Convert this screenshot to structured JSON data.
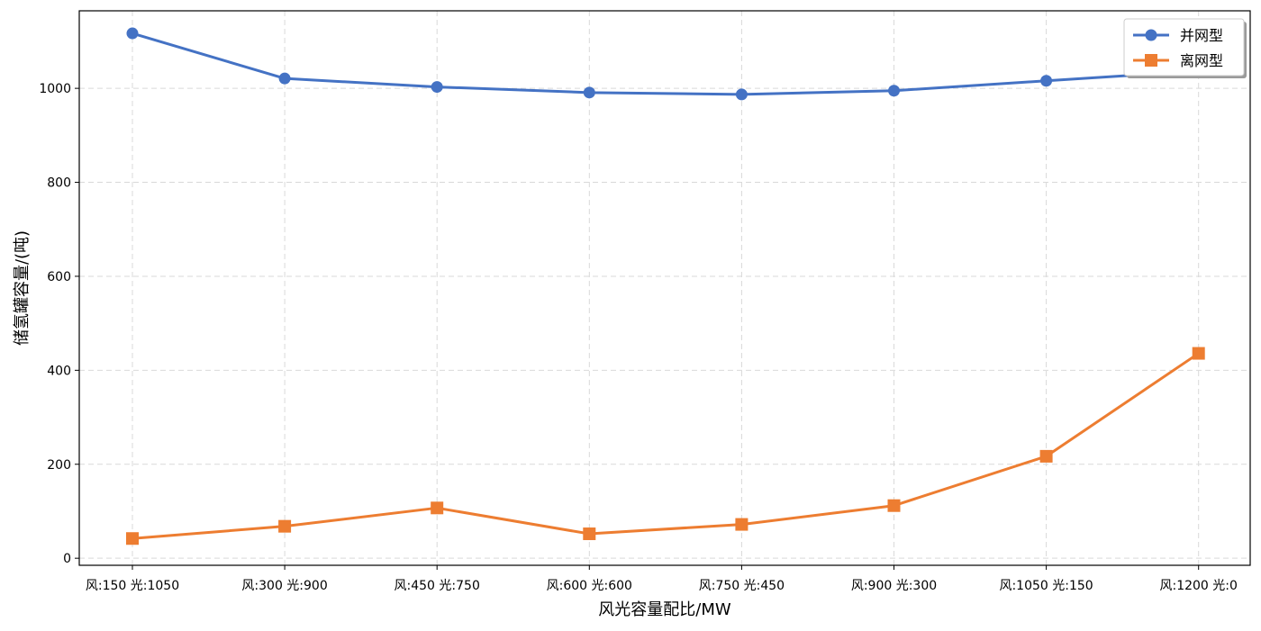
{
  "chart_data": {
    "type": "line",
    "title": "",
    "xlabel": "风光容量配比/MW",
    "ylabel": "储氢罐容量/(吨)",
    "categories": [
      "风:150 光:1050",
      "风:300 光:900",
      "风:450 光:750",
      "风:600 光:600",
      "风:750 光:450",
      "风:900 光:300",
      "风:1050 光:150",
      "风:1200 光:0"
    ],
    "ylim": [
      -15,
      1165
    ],
    "yticks": [
      0,
      200,
      400,
      600,
      800,
      1000
    ],
    "grid": true,
    "legend_position": "top-right",
    "series": [
      {
        "name": "并网型",
        "marker": "circle",
        "color": "#4472C4",
        "values": [
          1117,
          1021,
          1003,
          991,
          987,
          995,
          1016,
          1037
        ]
      },
      {
        "name": "离网型",
        "marker": "square",
        "color": "#ED7D31",
        "values": [
          42,
          68,
          107,
          52,
          72,
          112,
          217,
          436
        ]
      }
    ]
  }
}
